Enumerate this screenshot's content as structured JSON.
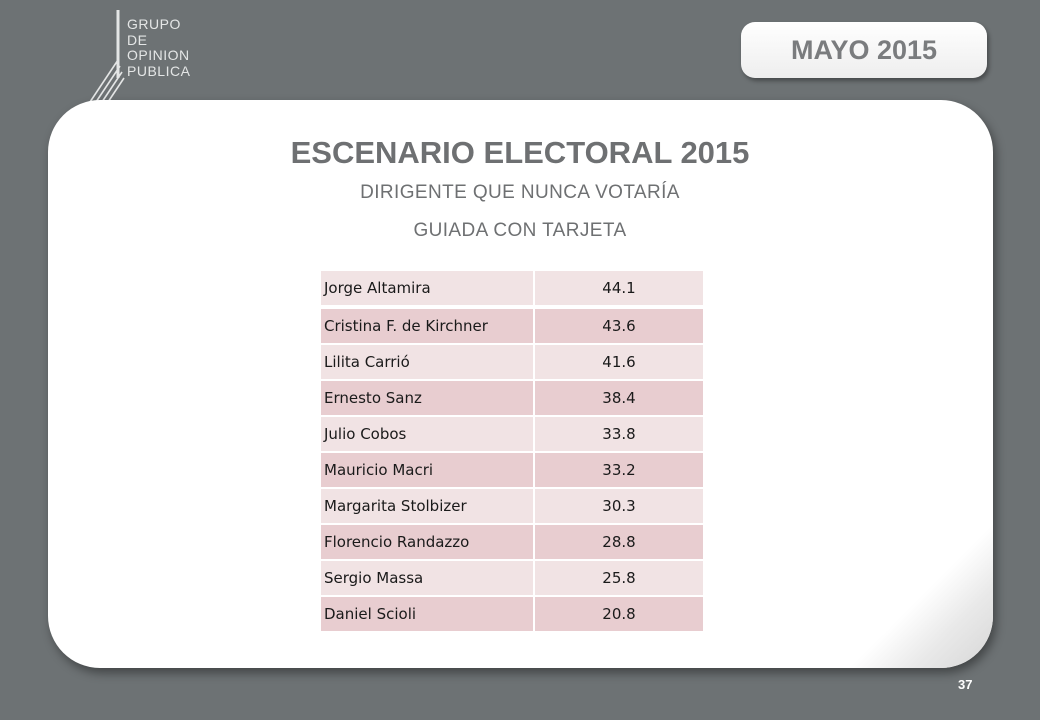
{
  "logo": {
    "lines": [
      "GRUPO",
      "DE",
      "OPINION",
      "PUBLICA"
    ]
  },
  "badge": {
    "label": "MAYO 2015"
  },
  "title": "ESCENARIO ELECTORAL 2015",
  "subtitle_1": "DIRIGENTE QUE NUNCA VOTARÍA",
  "subtitle_2": "GUIADA CON TARJETA",
  "table": {
    "rows": [
      {
        "name": "Jorge Altamira",
        "value": "44.1"
      },
      {
        "name": "Cristina F. de Kirchner",
        "value": "43.6"
      },
      {
        "name": "Lilita Carrió",
        "value": "41.6"
      },
      {
        "name": "Ernesto Sanz",
        "value": "38.4"
      },
      {
        "name": "Julio Cobos",
        "value": "33.8"
      },
      {
        "name": "Mauricio Macri",
        "value": "33.2"
      },
      {
        "name": "Margarita Stolbizer",
        "value": "30.3"
      },
      {
        "name": "Florencio Randazzo",
        "value": "28.8"
      },
      {
        "name": "Sergio Massa",
        "value": "25.8"
      },
      {
        "name": "Daniel Scioli",
        "value": "20.8"
      }
    ]
  },
  "page_number": "37",
  "colors": {
    "background": "#6d7274",
    "row_light": "#f1e3e4",
    "row_dark": "#e8cdd0",
    "title_text": "#6e7072"
  }
}
